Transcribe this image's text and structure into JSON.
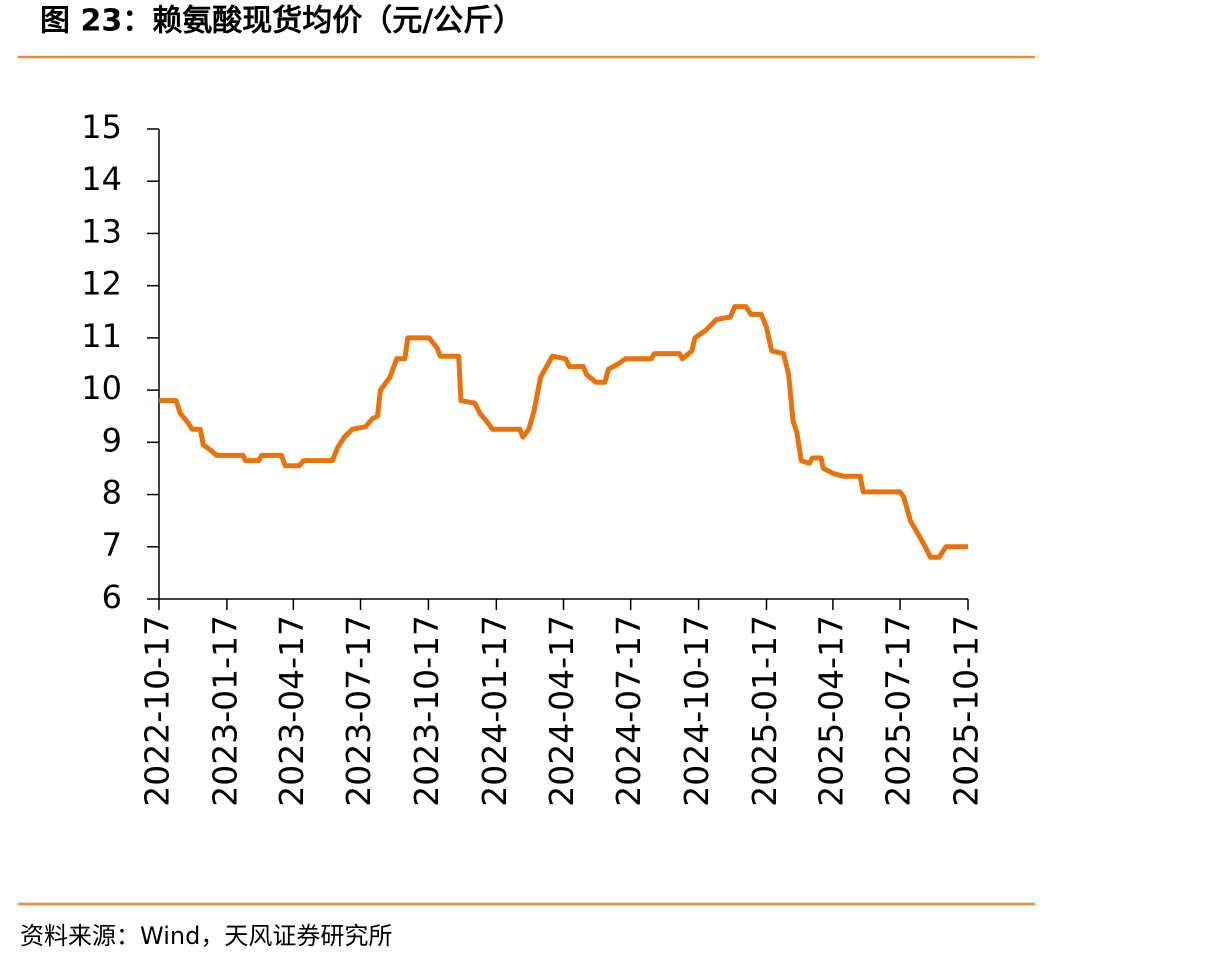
{
  "chart_data": {
    "type": "line",
    "title": "图 23：赖氨酸现货均价（元/公斤）",
    "source": "资料来源：Wind，天风证券研究所",
    "color": "#e8720c",
    "x": [
      "2022-10-17",
      "2022-11-09",
      "2022-11-15",
      "2022-11-24",
      "2022-12-01",
      "2022-12-12",
      "2022-12-16",
      "2022-12-26",
      "2023-01-03",
      "2023-02-08",
      "2023-02-11",
      "2023-03-01",
      "2023-03-05",
      "2023-04-01",
      "2023-04-06",
      "2023-04-25",
      "2023-05-01",
      "2023-06-09",
      "2023-06-16",
      "2023-06-25",
      "2023-07-06",
      "2023-07-24",
      "2023-08-02",
      "2023-08-09",
      "2023-08-13",
      "2023-08-26",
      "2023-09-04",
      "2023-09-15",
      "2023-09-19",
      "2023-10-18",
      "2023-10-29",
      "2023-11-02",
      "2023-11-27",
      "2023-11-30",
      "2023-12-19",
      "2023-12-26",
      "2024-01-04",
      "2024-01-12",
      "2024-02-18",
      "2024-02-22",
      "2024-03-01",
      "2024-03-08",
      "2024-03-17",
      "2024-03-27",
      "2024-04-02",
      "2024-04-20",
      "2024-04-25",
      "2024-05-14",
      "2024-05-18",
      "2024-05-31",
      "2024-06-12",
      "2024-06-17",
      "2024-06-30",
      "2024-07-10",
      "2024-08-14",
      "2024-08-18",
      "2024-09-21",
      "2024-09-25",
      "2024-10-08",
      "2024-10-12",
      "2024-10-27",
      "2024-11-10",
      "2024-11-29",
      "2024-12-05",
      "2024-12-20",
      "2024-12-27",
      "2025-01-10",
      "2025-01-17",
      "2025-01-24",
      "2025-02-09",
      "2025-02-16",
      "2025-02-22",
      "2025-02-27",
      "2025-03-05",
      "2025-03-16",
      "2025-03-20",
      "2025-04-01",
      "2025-04-04",
      "2025-04-18",
      "2025-05-02",
      "2025-05-24",
      "2025-05-28",
      "2025-07-17",
      "2025-07-22",
      "2025-07-31",
      "2025-08-12",
      "2025-08-20",
      "2025-08-27",
      "2025-09-08",
      "2025-09-17",
      "2025-10-17"
    ],
    "values": [
      9.8,
      9.8,
      9.55,
      9.4,
      9.25,
      9.25,
      8.95,
      8.85,
      8.75,
      8.75,
      8.65,
      8.65,
      8.75,
      8.75,
      8.55,
      8.55,
      8.65,
      8.65,
      8.9,
      9.1,
      9.25,
      9.3,
      9.45,
      9.5,
      10.0,
      10.25,
      10.6,
      10.6,
      11.0,
      11.0,
      10.8,
      10.65,
      10.65,
      9.8,
      9.75,
      9.55,
      9.4,
      9.25,
      9.25,
      9.1,
      9.25,
      9.6,
      10.25,
      10.5,
      10.65,
      10.6,
      10.45,
      10.45,
      10.3,
      10.15,
      10.15,
      10.4,
      10.5,
      10.6,
      10.6,
      10.7,
      10.7,
      10.6,
      10.75,
      11.0,
      11.15,
      11.35,
      11.4,
      11.6,
      11.6,
      11.45,
      11.45,
      11.2,
      10.75,
      10.7,
      10.3,
      9.4,
      9.2,
      8.65,
      8.6,
      8.7,
      8.7,
      8.5,
      8.4,
      8.35,
      8.35,
      8.05,
      8.05,
      7.95,
      7.5,
      7.2,
      7.0,
      6.8,
      6.8,
      7.0,
      7.0
    ],
    "xlim": [
      "2022-10-17",
      "2025-10-17"
    ],
    "xticks": [
      "2022-10-17",
      "2023-01-17",
      "2023-04-17",
      "2023-07-17",
      "2023-10-17",
      "2024-01-17",
      "2024-04-17",
      "2024-07-17",
      "2024-10-17",
      "2025-01-17",
      "2025-04-17",
      "2025-07-17",
      "2025-10-17"
    ],
    "ylim": [
      6,
      15
    ],
    "yticks": [
      6,
      7,
      8,
      9,
      10,
      11,
      12,
      13,
      14,
      15
    ]
  }
}
